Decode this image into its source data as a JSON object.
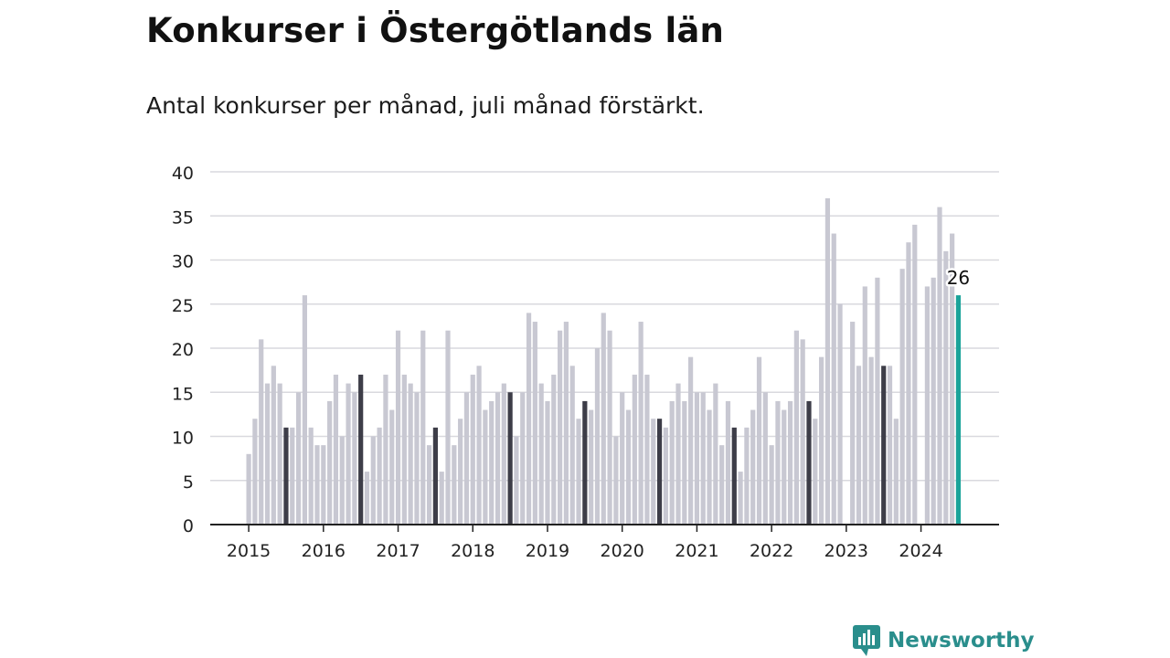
{
  "header": {
    "title": "Konkurser i Östergötlands län",
    "subtitle": "Antal konkurser per månad, juli månad förstärkt."
  },
  "brand": {
    "name": "Newsworthy",
    "logo_icon": "bar-chart-speech-bubble-icon"
  },
  "colors": {
    "bar": "#c8c8d2",
    "highlight_month": "#3d3d48",
    "latest": "#1aa39a",
    "grid": "#d9d9de",
    "axis": "#222222",
    "brand": "#2a8e8c"
  },
  "chart_data": {
    "type": "bar",
    "title": "Konkurser i Östergötlands län",
    "subtitle": "Antal konkurser per månad, juli månad förstärkt.",
    "xlabel": "",
    "ylabel": "",
    "ylim": [
      0,
      40
    ],
    "yticks": [
      0,
      5,
      10,
      15,
      20,
      25,
      30,
      35,
      40
    ],
    "xticks": [
      "2015",
      "2016",
      "2017",
      "2018",
      "2019",
      "2020",
      "2021",
      "2022",
      "2023",
      "2024"
    ],
    "grid": true,
    "start_month": "2015-01",
    "end_month": "2024-07",
    "highlight": "July of each year",
    "annotation": {
      "month": "2024-07",
      "label": "26"
    },
    "values": [
      8,
      12,
      21,
      16,
      18,
      16,
      11,
      11,
      15,
      26,
      11,
      9,
      9,
      14,
      17,
      10,
      16,
      15,
      17,
      6,
      10,
      11,
      17,
      13,
      22,
      17,
      16,
      15,
      22,
      9,
      11,
      6,
      22,
      9,
      12,
      15,
      17,
      18,
      13,
      14,
      15,
      16,
      15,
      10,
      15,
      24,
      23,
      16,
      14,
      17,
      22,
      23,
      18,
      12,
      14,
      13,
      20,
      24,
      22,
      10,
      15,
      13,
      17,
      23,
      17,
      12,
      12,
      11,
      14,
      16,
      14,
      19,
      15,
      15,
      13,
      16,
      9,
      14,
      11,
      6,
      11,
      13,
      19,
      15,
      9,
      14,
      13,
      14,
      22,
      21,
      14,
      12,
      19,
      37,
      33,
      25,
      0,
      23,
      18,
      27,
      19,
      28,
      18,
      18,
      12,
      29,
      32,
      34,
      0,
      27,
      28,
      36,
      31,
      33,
      26
    ]
  }
}
